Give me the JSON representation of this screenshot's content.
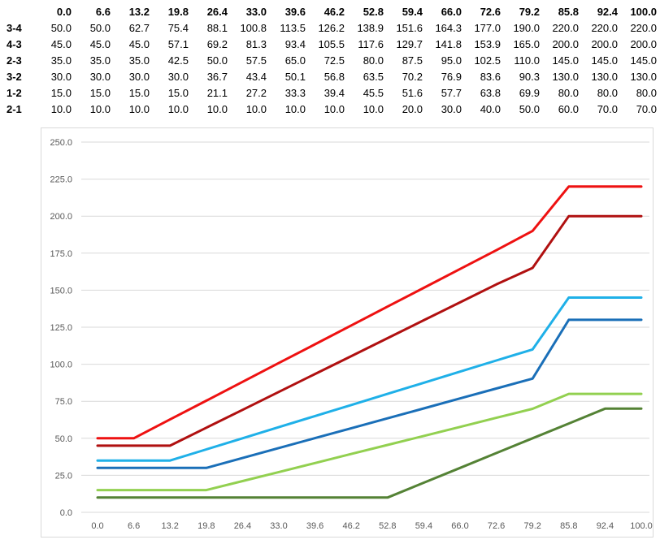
{
  "table": {
    "columns": [
      "0.0",
      "6.6",
      "13.2",
      "19.8",
      "26.4",
      "33.0",
      "39.6",
      "46.2",
      "52.8",
      "59.4",
      "66.0",
      "72.6",
      "79.2",
      "85.8",
      "92.4",
      "100.0"
    ],
    "rows": [
      {
        "label": "3-4",
        "values": [
          "50.0",
          "50.0",
          "62.7",
          "75.4",
          "88.1",
          "100.8",
          "113.5",
          "126.2",
          "138.9",
          "151.6",
          "164.3",
          "177.0",
          "190.0",
          "220.0",
          "220.0",
          "220.0"
        ]
      },
      {
        "label": "4-3",
        "values": [
          "45.0",
          "45.0",
          "45.0",
          "57.1",
          "69.2",
          "81.3",
          "93.4",
          "105.5",
          "117.6",
          "129.7",
          "141.8",
          "153.9",
          "165.0",
          "200.0",
          "200.0",
          "200.0"
        ]
      },
      {
        "label": "2-3",
        "values": [
          "35.0",
          "35.0",
          "35.0",
          "42.5",
          "50.0",
          "57.5",
          "65.0",
          "72.5",
          "80.0",
          "87.5",
          "95.0",
          "102.5",
          "110.0",
          "145.0",
          "145.0",
          "145.0"
        ]
      },
      {
        "label": "3-2",
        "values": [
          "30.0",
          "30.0",
          "30.0",
          "30.0",
          "36.7",
          "43.4",
          "50.1",
          "56.8",
          "63.5",
          "70.2",
          "76.9",
          "83.6",
          "90.3",
          "130.0",
          "130.0",
          "130.0"
        ]
      },
      {
        "label": "1-2",
        "values": [
          "15.0",
          "15.0",
          "15.0",
          "15.0",
          "21.1",
          "27.2",
          "33.3",
          "39.4",
          "45.5",
          "51.6",
          "57.7",
          "63.8",
          "69.9",
          "80.0",
          "80.0",
          "80.0"
        ]
      },
      {
        "label": "2-1",
        "values": [
          "10.0",
          "10.0",
          "10.0",
          "10.0",
          "10.0",
          "10.0",
          "10.0",
          "10.0",
          "10.0",
          "20.0",
          "30.0",
          "40.0",
          "50.0",
          "60.0",
          "70.0",
          "70.0"
        ]
      }
    ]
  },
  "chart_data": {
    "type": "line",
    "title": "",
    "xlabel": "",
    "ylabel": "",
    "categories": [
      "0.0",
      "6.6",
      "13.2",
      "19.8",
      "26.4",
      "33.0",
      "39.6",
      "46.2",
      "52.8",
      "59.4",
      "66.0",
      "72.6",
      "79.2",
      "85.8",
      "92.4",
      "100.0"
    ],
    "ylim": [
      0,
      250
    ],
    "yticks": [
      0,
      25,
      50,
      75,
      100,
      125,
      150,
      175,
      200,
      225,
      250
    ],
    "ytick_labels": [
      "0.0",
      "25.0",
      "50.0",
      "75.0",
      "100.0",
      "125.0",
      "150.0",
      "175.0",
      "200.0",
      "225.0",
      "250.0"
    ],
    "grid": "horizontal",
    "legend": "none",
    "series": [
      {
        "name": "3-4",
        "color": "#ee1111",
        "values": [
          50,
          50,
          62.7,
          75.4,
          88.1,
          100.8,
          113.5,
          126.2,
          138.9,
          151.6,
          164.3,
          177,
          190,
          220,
          220,
          220
        ]
      },
      {
        "name": "4-3",
        "color": "#b01010",
        "values": [
          45,
          45,
          45,
          57.1,
          69.2,
          81.3,
          93.4,
          105.5,
          117.6,
          129.7,
          141.8,
          153.9,
          165,
          200,
          200,
          200
        ]
      },
      {
        "name": "2-3",
        "color": "#1fb0e8",
        "values": [
          35,
          35,
          35,
          42.5,
          50,
          57.5,
          65,
          72.5,
          80,
          87.5,
          95,
          102.5,
          110,
          145,
          145,
          145
        ]
      },
      {
        "name": "3-2",
        "color": "#1a6fb8",
        "values": [
          30,
          30,
          30,
          30,
          36.7,
          43.4,
          50.1,
          56.8,
          63.5,
          70.2,
          76.9,
          83.6,
          90.3,
          130,
          130,
          130
        ]
      },
      {
        "name": "1-2",
        "color": "#92d050",
        "values": [
          15,
          15,
          15,
          15,
          21.1,
          27.2,
          33.3,
          39.4,
          45.5,
          51.6,
          57.7,
          63.8,
          69.9,
          80,
          80,
          80
        ]
      },
      {
        "name": "2-1",
        "color": "#548235",
        "values": [
          10,
          10,
          10,
          10,
          10,
          10,
          10,
          10,
          10,
          20,
          30,
          40,
          50,
          60,
          70,
          70
        ]
      }
    ]
  }
}
